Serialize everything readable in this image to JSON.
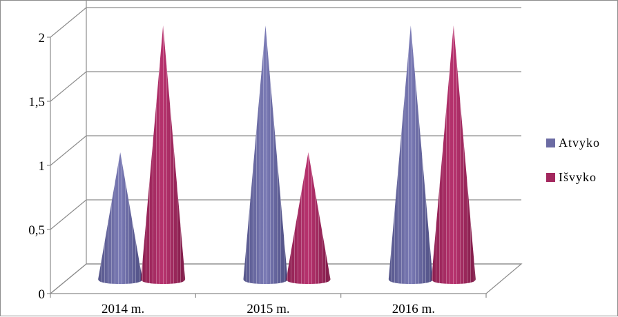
{
  "chart_data": {
    "type": "bar",
    "style": "3d-cone",
    "categories": [
      "2014 m.",
      "2015 m.",
      "2016 m."
    ],
    "series": [
      {
        "name": "Atvyko",
        "values": [
          1,
          2,
          2
        ],
        "color": "#6b6ba3"
      },
      {
        "name": "Išvyko",
        "values": [
          2,
          1,
          2
        ],
        "color": "#a3275e"
      }
    ],
    "ylim": [
      0,
      2
    ],
    "y_ticks": [
      "0",
      "0,5",
      "1",
      "1,5",
      "2"
    ],
    "y_tick_values": [
      0,
      0.5,
      1,
      1.5,
      2
    ],
    "grid": true,
    "legend_position": "right"
  }
}
